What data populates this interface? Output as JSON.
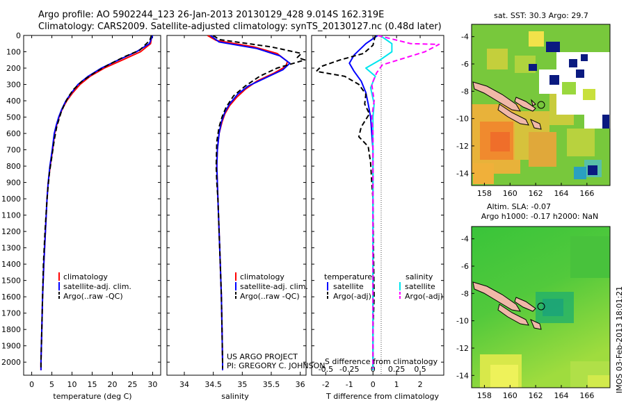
{
  "header": {
    "title1": "Argo profile: AO 5902244_123 26-Jan-2013 20130129_428 9.014S 162.319E",
    "title2": "Climatology: CARS2009. Satellite-adjusted climatology: synTS_20130127.nc (0.48d later)"
  },
  "legend_labels": {
    "climatology": "climatology",
    "satellite_adj": "satellite-adj. clim.",
    "argo_raw": "Argo(..raw -QC)",
    "temperature": "temperature",
    "salinity": "salinity",
    "satellite": "satellite",
    "argo_adj": "Argo(-adj)"
  },
  "credits": {
    "project": "US ARGO PROJECT",
    "pi": "PI: GREGORY C. JOHNSON"
  },
  "colors": {
    "climatology": "#ff0000",
    "satellite": "#0000ff",
    "argo": "#000000",
    "sal_satellite": "#00e5ee",
    "sal_argo": "#ff00ff"
  },
  "maps": {
    "sst_title": "sat. SST: 30.3 Argo: 29.7",
    "sla_title1": "Altim. SLA: -0.07",
    "sla_title2": "Argo h1000: -0.17 h2000: NaN",
    "lon_ticks": [
      "158",
      "160",
      "162",
      "164",
      "166"
    ],
    "lat_ticks_sst": [
      "-4",
      "-6",
      "-8",
      "-10",
      "-12",
      "-14"
    ],
    "lat_ticks_sla": [
      "-4",
      "-6",
      "-8",
      "-10",
      "-12",
      "-14"
    ]
  },
  "imos_stamp": "IMOS 03-Feb-2013 18:01:21",
  "chart_data": [
    {
      "type": "line",
      "id": "temperature",
      "xlabel": "temperature (deg C)",
      "ylabel": "",
      "xlim": [
        -2,
        32
      ],
      "ylim": [
        2080,
        0
      ],
      "x_ticks": [
        0,
        5,
        10,
        15,
        20,
        25,
        30
      ],
      "y_ticks": [
        0,
        100,
        200,
        300,
        400,
        500,
        600,
        700,
        800,
        900,
        1000,
        1100,
        1200,
        1300,
        1400,
        1500,
        1600,
        1700,
        1800,
        1900,
        2000
      ],
      "legend_position": "lower-middle",
      "series": [
        {
          "name": "climatology",
          "key": "climatology",
          "dash": "solid",
          "points": [
            [
              29.8,
              0
            ],
            [
              29.5,
              50
            ],
            [
              27,
              100
            ],
            [
              22.5,
              150
            ],
            [
              18,
              200
            ],
            [
              14.5,
              250
            ],
            [
              12,
              300
            ],
            [
              10.2,
              350
            ],
            [
              8.7,
              400
            ],
            [
              7.6,
              450
            ],
            [
              6.8,
              500
            ],
            [
              6.2,
              550
            ],
            [
              5.7,
              600
            ],
            [
              5.2,
              700
            ],
            [
              4.6,
              800
            ],
            [
              4.1,
              900
            ],
            [
              3.8,
              1000
            ],
            [
              3.4,
              1200
            ],
            [
              3.0,
              1400
            ],
            [
              2.7,
              1600
            ],
            [
              2.5,
              1800
            ],
            [
              2.3,
              2000
            ],
            [
              2.3,
              2050
            ]
          ]
        },
        {
          "name": "satellite-adj. clim.",
          "key": "satellite",
          "dash": "solid",
          "points": [
            [
              30.0,
              0
            ],
            [
              29.2,
              50
            ],
            [
              26,
              100
            ],
            [
              21.5,
              150
            ],
            [
              17.3,
              200
            ],
            [
              14,
              250
            ],
            [
              11.5,
              300
            ],
            [
              9.9,
              350
            ],
            [
              8.5,
              400
            ],
            [
              7.5,
              450
            ],
            [
              6.7,
              500
            ],
            [
              6.1,
              550
            ],
            [
              5.6,
              600
            ],
            [
              5.1,
              700
            ],
            [
              4.5,
              800
            ],
            [
              4.1,
              900
            ],
            [
              3.8,
              1000
            ],
            [
              3.4,
              1200
            ],
            [
              3.0,
              1400
            ],
            [
              2.7,
              1600
            ],
            [
              2.5,
              1800
            ],
            [
              2.3,
              2000
            ],
            [
              2.3,
              2050
            ]
          ]
        },
        {
          "name": "Argo(..raw -QC)",
          "key": "argo",
          "dash": "dashed",
          "points": [
            [
              29.7,
              0
            ],
            [
              29.3,
              30
            ],
            [
              26.8,
              90
            ],
            [
              23,
              130
            ],
            [
              19,
              180
            ],
            [
              15.5,
              230
            ],
            [
              12.5,
              280
            ],
            [
              10.4,
              330
            ],
            [
              9,
              380
            ],
            [
              8,
              430
            ],
            [
              7.3,
              470
            ],
            [
              6.8,
              510
            ],
            [
              6.2,
              560
            ],
            [
              5.6,
              640
            ],
            [
              5,
              740
            ],
            [
              4.4,
              840
            ],
            [
              4,
              940
            ],
            [
              3.7,
              1040
            ],
            [
              3.3,
              1200
            ],
            [
              2.9,
              1400
            ],
            [
              2.7,
              1600
            ],
            [
              2.5,
              1800
            ],
            [
              2.3,
              2000
            ],
            [
              2.3,
              2040
            ]
          ]
        }
      ]
    },
    {
      "type": "line",
      "id": "salinity",
      "xlabel": "salinity",
      "ylabel": "",
      "xlim": [
        33.7,
        36.1
      ],
      "ylim": [
        2080,
        0
      ],
      "x_ticks": [
        34,
        34.5,
        35,
        35.5,
        36
      ],
      "legend_position": "lower-middle",
      "series": [
        {
          "name": "climatology",
          "key": "climatology",
          "dash": "solid",
          "points": [
            [
              34.4,
              0
            ],
            [
              34.55,
              30
            ],
            [
              35.2,
              70
            ],
            [
              35.6,
              110
            ],
            [
              35.78,
              160
            ],
            [
              35.75,
              190
            ],
            [
              35.55,
              230
            ],
            [
              35.25,
              280
            ],
            [
              35.05,
              330
            ],
            [
              34.9,
              380
            ],
            [
              34.78,
              430
            ],
            [
              34.7,
              480
            ],
            [
              34.65,
              530
            ],
            [
              34.6,
              600
            ],
            [
              34.57,
              700
            ],
            [
              34.56,
              800
            ],
            [
              34.57,
              900
            ],
            [
              34.58,
              1000
            ],
            [
              34.6,
              1200
            ],
            [
              34.62,
              1400
            ],
            [
              34.64,
              1600
            ],
            [
              34.65,
              1800
            ],
            [
              34.66,
              2000
            ],
            [
              34.66,
              2050
            ]
          ]
        },
        {
          "name": "satellite-adj. clim.",
          "key": "satellite",
          "dash": "solid",
          "points": [
            [
              34.45,
              0
            ],
            [
              34.6,
              40
            ],
            [
              35.25,
              80
            ],
            [
              35.65,
              125
            ],
            [
              35.82,
              170
            ],
            [
              35.7,
              210
            ],
            [
              35.4,
              260
            ],
            [
              35.1,
              310
            ],
            [
              34.92,
              360
            ],
            [
              34.78,
              420
            ],
            [
              34.7,
              470
            ],
            [
              34.64,
              530
            ],
            [
              34.6,
              600
            ],
            [
              34.57,
              700
            ],
            [
              34.56,
              800
            ],
            [
              34.57,
              900
            ],
            [
              34.58,
              1000
            ],
            [
              34.6,
              1200
            ],
            [
              34.62,
              1400
            ],
            [
              34.64,
              1600
            ],
            [
              34.65,
              1800
            ],
            [
              34.66,
              2000
            ],
            [
              34.66,
              2050
            ]
          ]
        },
        {
          "name": "Argo(..raw -QC)",
          "key": "argo",
          "dash": "dashed",
          "points": [
            [
              34.5,
              0
            ],
            [
              34.6,
              25
            ],
            [
              35.5,
              70
            ],
            [
              36.02,
              110
            ],
            [
              35.95,
              135
            ],
            [
              36.08,
              150
            ],
            [
              35.6,
              200
            ],
            [
              35.3,
              250
            ],
            [
              35.05,
              310
            ],
            [
              34.85,
              370
            ],
            [
              34.72,
              440
            ],
            [
              34.65,
              500
            ],
            [
              34.6,
              560
            ],
            [
              34.56,
              650
            ],
            [
              34.55,
              800
            ],
            [
              34.56,
              900
            ],
            [
              34.58,
              1000
            ],
            [
              34.6,
              1200
            ],
            [
              34.62,
              1400
            ],
            [
              34.64,
              1600
            ],
            [
              34.65,
              1800
            ],
            [
              34.66,
              2000
            ],
            [
              34.66,
              2040
            ]
          ]
        }
      ]
    },
    {
      "type": "line",
      "id": "difference",
      "xlabel": "T difference from climatology",
      "xlabel_top": "S difference from climatology",
      "xlim": [
        -2.6,
        3.0
      ],
      "ylim": [
        2080,
        0
      ],
      "x_ticks": [
        -2,
        -1,
        0,
        1,
        2
      ],
      "top_ticks": [
        {
          "label": "-0.5",
          "x": -2
        },
        {
          "label": "-0.25",
          "x": -1
        },
        {
          "label": "0",
          "x": 0
        },
        {
          "label": "0.25",
          "x": 1
        },
        {
          "label": "0.5",
          "x": 2
        }
      ],
      "legend_position": "lower-middle",
      "series": [
        {
          "name": "temperature satellite",
          "key": "satellite",
          "dash": "solid",
          "points": [
            [
              0.2,
              0
            ],
            [
              -0.3,
              50
            ],
            [
              -0.8,
              120
            ],
            [
              -1.0,
              170
            ],
            [
              -0.8,
              220
            ],
            [
              -0.5,
              280
            ],
            [
              -0.3,
              350
            ],
            [
              -0.2,
              420
            ],
            [
              -0.1,
              500
            ],
            [
              -0.05,
              600
            ],
            [
              0,
              700
            ],
            [
              0,
              900
            ],
            [
              0,
              1200
            ],
            [
              0,
              1600
            ],
            [
              0,
              2000
            ],
            [
              0,
              2050
            ]
          ]
        },
        {
          "name": "temperature Argo(-adj)",
          "key": "argo",
          "dash": "dashed",
          "points": [
            [
              0.1,
              0
            ],
            [
              0,
              60
            ],
            [
              -0.4,
              110
            ],
            [
              -1.4,
              150
            ],
            [
              -2.2,
              190
            ],
            [
              -2.4,
              220
            ],
            [
              -1.2,
              250
            ],
            [
              -0.6,
              300
            ],
            [
              -0.3,
              360
            ],
            [
              -0.35,
              420
            ],
            [
              -0.15,
              480
            ],
            [
              -0.5,
              560
            ],
            [
              -0.6,
              620
            ],
            [
              -0.2,
              680
            ],
            [
              -0.1,
              780
            ],
            [
              -0.05,
              900
            ],
            [
              0,
              1000
            ],
            [
              0.02,
              1300
            ],
            [
              0.05,
              1600
            ],
            [
              0,
              1800
            ],
            [
              0,
              2000
            ],
            [
              0,
              2040
            ]
          ]
        },
        {
          "name": "salinity satellite",
          "key": "sal_satellite",
          "dash": "solid",
          "points": [
            [
              0.3,
              0
            ],
            [
              0.8,
              50
            ],
            [
              0.8,
              100
            ],
            [
              0.3,
              150
            ],
            [
              -0.3,
              200
            ],
            [
              0.1,
              250
            ],
            [
              -0.1,
              320
            ],
            [
              0.05,
              420
            ],
            [
              0,
              500
            ],
            [
              0,
              700
            ],
            [
              0,
              1000
            ],
            [
              0,
              1400
            ],
            [
              0,
              1800
            ],
            [
              0,
              2050
            ]
          ]
        },
        {
          "name": "salinity Argo(-adj)",
          "key": "sal_argo",
          "dash": "dashed",
          "points": [
            [
              0.2,
              0
            ],
            [
              1.6,
              50
            ],
            [
              2.8,
              55
            ],
            [
              2.2,
              100
            ],
            [
              1.3,
              140
            ],
            [
              0.4,
              180
            ],
            [
              0.15,
              230
            ],
            [
              -0.05,
              300
            ],
            [
              0.05,
              400
            ],
            [
              -0.05,
              500
            ],
            [
              0,
              600
            ],
            [
              0,
              800
            ],
            [
              0,
              1000
            ],
            [
              0,
              1300
            ],
            [
              0,
              1700
            ],
            [
              0,
              2040
            ]
          ]
        }
      ]
    }
  ]
}
